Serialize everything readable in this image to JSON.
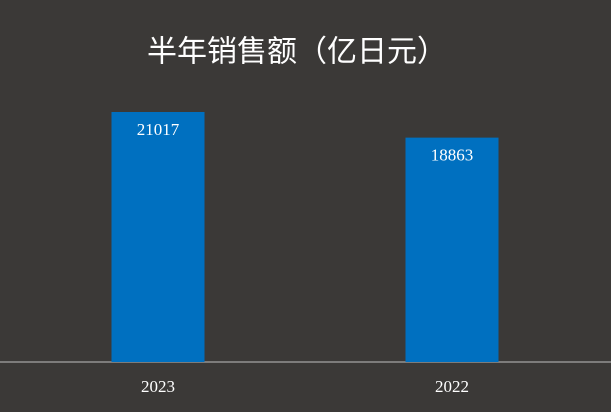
{
  "chart_data": {
    "type": "bar",
    "title": "半年销售额（亿日元）",
    "categories": [
      "2023",
      "2022"
    ],
    "values": [
      21017,
      18863
    ],
    "color": "#0070c0"
  }
}
